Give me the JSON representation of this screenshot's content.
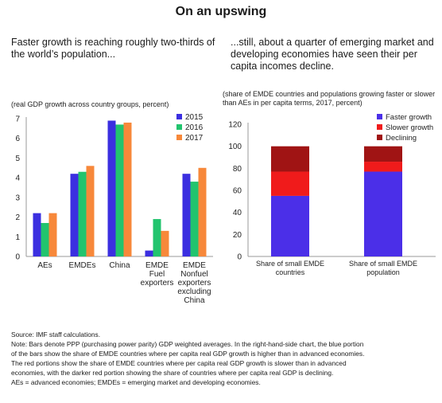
{
  "title": "On an upswing",
  "left_panel": {
    "subhead": "Faster growth is reaching roughly two-thirds of the world’s population...",
    "units": "(real GDP growth across country groups, percent)"
  },
  "right_panel": {
    "subhead": "...still, about a quarter of emerging market and developing economies have seen their per capita incomes decline.",
    "units": "(share of EMDE countries and populations growing faster or slower than AEs in per capita terms, 2017, percent)"
  },
  "notes": {
    "source": "Source: IMF staff calculations.",
    "note_lines": [
      "Note: Bars denote PPP (purchasing power parity) GDP weighted averages. In the right-hand-side chart, the blue portion",
      "of the bars show the share of EMDE countries where per capita real GDP growth is higher than in advanced economies.",
      "The red portions show the share of EMDE countries where per capita real GDP growth is slower than in advanced",
      "economies, with the darker red portion showing the share of countries where per capita real GDP is declining.",
      "AEs = advanced economies; EMDEs = emerging market and developing economies."
    ]
  },
  "colors": {
    "s2015": "#3b2fe0",
    "s2016": "#22c46e",
    "s2017": "#f7883a",
    "faster": "#4b2fe8",
    "slower": "#f01b1b",
    "declining": "#a01414",
    "axis": "#999999"
  },
  "chart_data": [
    {
      "type": "bar",
      "categories": [
        [
          "AEs"
        ],
        [
          "EMDEs"
        ],
        [
          "China"
        ],
        [
          "EMDE",
          "Fuel",
          "exporters"
        ],
        [
          "EMDE",
          "Nonfuel",
          "exporters",
          "excluding",
          "China"
        ]
      ],
      "series": [
        {
          "name": "2015",
          "values": [
            2.2,
            4.2,
            6.9,
            0.3,
            4.2
          ]
        },
        {
          "name": "2016",
          "values": [
            1.7,
            4.3,
            6.7,
            1.9,
            3.8
          ]
        },
        {
          "name": "2017",
          "values": [
            2.2,
            4.6,
            6.8,
            1.3,
            4.5
          ]
        }
      ],
      "ylim": [
        0,
        7
      ],
      "yticks": [
        "0",
        "1",
        "2",
        "3",
        "4",
        "5",
        "6",
        "7"
      ],
      "legend_position": "top-right"
    },
    {
      "type": "bar",
      "stacked": true,
      "categories": [
        [
          "Share of small EMDE",
          "countries"
        ],
        [
          "Share of small EMDE",
          "population"
        ]
      ],
      "series": [
        {
          "name": "Faster growth",
          "values": [
            55,
            77
          ]
        },
        {
          "name": "Slower growth",
          "values": [
            22,
            9
          ]
        },
        {
          "name": "Declining",
          "values": [
            23,
            14
          ]
        }
      ],
      "ylim": [
        0,
        120
      ],
      "yticks": [
        "0",
        "20",
        "40",
        "60",
        "80",
        "100",
        "120"
      ],
      "legend_position": "top-right"
    }
  ]
}
